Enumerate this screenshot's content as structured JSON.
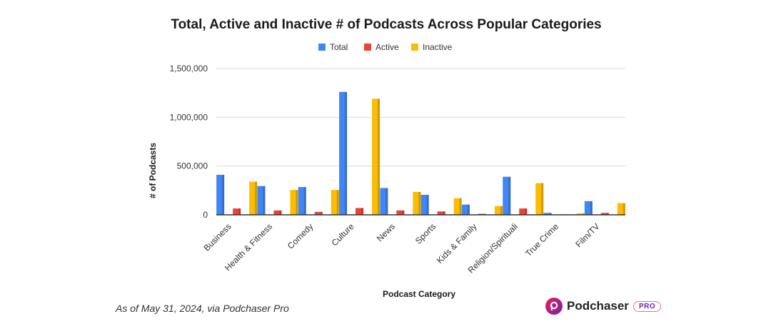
{
  "footer": {
    "note": "As of May 31, 2024, via Podchaser Pro"
  },
  "brand": {
    "name": "Podchaser",
    "badge": "PRO",
    "logo_icon": "podchaser-logo-icon"
  },
  "colors": {
    "Total": "#4285f4",
    "Active": "#ea4335",
    "Inactive": "#fbbc04",
    "grid": "#d9d9d9",
    "axis": "#333333"
  },
  "chart_data": {
    "type": "bar",
    "title": "Total, Active and Inactive # of Podcasts Across Popular Categories",
    "xlabel": "Podcast Category",
    "ylabel": "# of Podcasts",
    "legend": [
      "Total",
      "Active",
      "Inactive"
    ],
    "legend_position": "top",
    "categories": [
      "Business",
      "Health & Fitness",
      "Comedy",
      "Culture",
      "News",
      "Sports",
      "Kids & Family",
      "Religion/Spirituali",
      "True Crime",
      "Film/TV"
    ],
    "series": [
      {
        "name": "Total",
        "values": [
          410000,
          295000,
          285000,
          1260000,
          275000,
          205000,
          105000,
          390000,
          20000,
          140000
        ]
      },
      {
        "name": "Active",
        "values": [
          65000,
          45000,
          30000,
          70000,
          45000,
          35000,
          10000,
          65000,
          5000,
          20000
        ]
      },
      {
        "name": "Inactive",
        "values": [
          340000,
          255000,
          255000,
          1190000,
          235000,
          170000,
          90000,
          325000,
          15000,
          120000
        ]
      }
    ],
    "ylim": [
      0,
      1500000
    ],
    "yticks": [
      0,
      500000,
      1000000,
      1500000
    ],
    "ytick_labels": [
      "0",
      "500,000",
      "1,000,000",
      "1,500,000"
    ],
    "grid": true
  }
}
